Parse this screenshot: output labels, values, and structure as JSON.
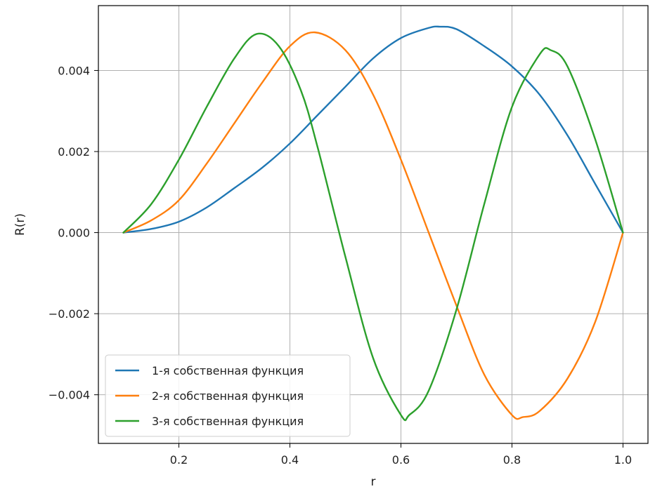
{
  "chart_data": {
    "type": "line",
    "title": "",
    "xlabel": "r",
    "ylabel": "R(r)",
    "xlim": [
      0.055,
      1.045
    ],
    "ylim": [
      -0.0052,
      0.0056
    ],
    "grid": true,
    "legend_position": "lower-left",
    "x_ticks": [
      {
        "value": 0.2,
        "label": "0.2"
      },
      {
        "value": 0.4,
        "label": "0.4"
      },
      {
        "value": 0.6,
        "label": "0.6"
      },
      {
        "value": 0.8,
        "label": "0.8"
      },
      {
        "value": 1.0,
        "label": "1.0"
      }
    ],
    "y_ticks": [
      {
        "value": -0.004,
        "label": "−0.004"
      },
      {
        "value": -0.002,
        "label": "−0.002"
      },
      {
        "value": 0.0,
        "label": "0.000"
      },
      {
        "value": 0.002,
        "label": "0.002"
      },
      {
        "value": 0.004,
        "label": "0.004"
      }
    ],
    "series": [
      {
        "name": "1-я собственная функция",
        "color": "#1f77b4",
        "x": [
          0.1,
          0.15,
          0.2,
          0.25,
          0.3,
          0.35,
          0.4,
          0.45,
          0.5,
          0.55,
          0.6,
          0.65,
          0.67,
          0.7,
          0.75,
          0.8,
          0.85,
          0.9,
          0.95,
          1.0
        ],
        "y": [
          0.0,
          9e-05,
          0.00027,
          0.00062,
          0.0011,
          0.0016,
          0.0022,
          0.0029,
          0.0036,
          0.0043,
          0.0048,
          0.00505,
          0.00508,
          0.00502,
          0.0046,
          0.0041,
          0.0034,
          0.0024,
          0.0012,
          0.0
        ]
      },
      {
        "name": "2-я собственная функция",
        "color": "#ff7f0e",
        "x": [
          0.1,
          0.15,
          0.2,
          0.25,
          0.3,
          0.35,
          0.4,
          0.445,
          0.5,
          0.55,
          0.6,
          0.65,
          0.7,
          0.75,
          0.8,
          0.82,
          0.85,
          0.9,
          0.95,
          1.0
        ],
        "y": [
          0.0,
          0.0003,
          0.0008,
          0.0017,
          0.0027,
          0.0037,
          0.0046,
          0.00494,
          0.0045,
          0.0034,
          0.0018,
          0.0,
          -0.0018,
          -0.0035,
          -0.0045,
          -0.00455,
          -0.0044,
          -0.0036,
          -0.0022,
          0.0
        ]
      },
      {
        "name": "3-я собственная функция",
        "color": "#2ca02c",
        "x": [
          0.1,
          0.15,
          0.2,
          0.25,
          0.3,
          0.34,
          0.38,
          0.42,
          0.45,
          0.5,
          0.55,
          0.6,
          0.615,
          0.65,
          0.7,
          0.75,
          0.8,
          0.85,
          0.87,
          0.9,
          0.95,
          1.0
        ],
        "y": [
          0.0,
          0.0007,
          0.0018,
          0.0031,
          0.0043,
          0.0049,
          0.0046,
          0.0035,
          0.0021,
          -0.0006,
          -0.0031,
          -0.0045,
          -0.0045,
          -0.0039,
          -0.0019,
          0.0007,
          0.0031,
          0.0044,
          0.0045,
          0.0041,
          0.0023,
          0.0
        ]
      }
    ]
  }
}
